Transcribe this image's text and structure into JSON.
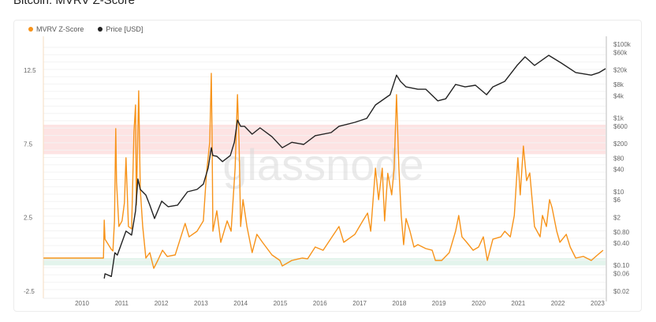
{
  "title": "Bitcoin: MVRV Z-Score",
  "watermark": "glassnode",
  "colors": {
    "mvrv": "#f7931a",
    "price": "#222222",
    "red_band": "#fde3e3",
    "green_band": "#e3f4ec"
  },
  "chart_data": {
    "type": "line",
    "title": "Bitcoin: MVRV Z-Score",
    "legend_position": "top-left",
    "grid": true,
    "xlim": [
      2009.0,
      2023.2
    ],
    "x_ticks": [
      "2010",
      "2011",
      "2012",
      "2013",
      "2014",
      "2015",
      "2016",
      "2017",
      "2018",
      "2019",
      "2020",
      "2021",
      "2022",
      "2023"
    ],
    "y_left": {
      "ylim": [
        -2.5,
        15.0
      ],
      "ticks": [
        "12.5",
        "7.5",
        "2.5",
        "-2.5"
      ],
      "tick_values": [
        12.5,
        7.5,
        2.5,
        -2.5
      ]
    },
    "y_right": {
      "scale": "log",
      "ylim": [
        0.02,
        100000
      ],
      "ticks": [
        "$100k",
        "$60k",
        "$20k",
        "$8k",
        "$4k",
        "$1k",
        "$600",
        "$200",
        "$80",
        "$40",
        "$10",
        "$6",
        "$2",
        "$0.80",
        "$0.40",
        "$0.10",
        "$0.06",
        "$0.02"
      ],
      "tick_values": [
        100000,
        60000,
        20000,
        8000,
        4000,
        1000,
        600,
        200,
        80,
        40,
        10,
        6,
        2,
        0.8,
        0.4,
        0.1,
        0.06,
        0.02
      ]
    },
    "bands": [
      {
        "axis": "left",
        "from": 6.8,
        "to": 8.8,
        "color": "#fde3e3"
      },
      {
        "axis": "left",
        "from": -0.75,
        "to": -0.25,
        "color": "#e3f4ec"
      }
    ],
    "series": [
      {
        "name": "MVRV Z-Score",
        "axis": "left",
        "color": "#f7931a",
        "points": [
          [
            2009.03,
            -0.25
          ],
          [
            2010.54,
            -0.25
          ],
          [
            2010.56,
            2.32
          ],
          [
            2010.58,
            1.03
          ],
          [
            2010.74,
            0.34
          ],
          [
            2010.78,
            0.23
          ],
          [
            2010.82,
            2.27
          ],
          [
            2010.85,
            8.53
          ],
          [
            2010.87,
            4.94
          ],
          [
            2010.93,
            1.89
          ],
          [
            2011.01,
            2.27
          ],
          [
            2011.07,
            3.49
          ],
          [
            2011.11,
            6.55
          ],
          [
            2011.17,
            1.89
          ],
          [
            2011.25,
            1.73
          ],
          [
            2011.31,
            8.32
          ],
          [
            2011.35,
            10.14
          ],
          [
            2011.37,
            3.34
          ],
          [
            2011.43,
            11.1
          ],
          [
            2011.47,
            4.43
          ],
          [
            2011.53,
            1.89
          ],
          [
            2011.61,
            -0.25
          ],
          [
            2011.71,
            0.12
          ],
          [
            2011.81,
            -0.95
          ],
          [
            2011.91,
            -0.41
          ],
          [
            2012.03,
            0.28
          ],
          [
            2012.15,
            -0.14
          ],
          [
            2012.35,
            -0.04
          ],
          [
            2012.6,
            2.1
          ],
          [
            2012.7,
            1.19
          ],
          [
            2012.9,
            1.57
          ],
          [
            2013.06,
            2.27
          ],
          [
            2013.14,
            5.5
          ],
          [
            2013.22,
            7.62
          ],
          [
            2013.26,
            12.28
          ],
          [
            2013.28,
            7.79
          ],
          [
            2013.3,
            1.57
          ],
          [
            2013.4,
            2.96
          ],
          [
            2013.5,
            0.82
          ],
          [
            2013.66,
            2.27
          ],
          [
            2013.76,
            1.57
          ],
          [
            2013.86,
            5.85
          ],
          [
            2013.92,
            10.84
          ],
          [
            2013.96,
            7.62
          ],
          [
            2014.0,
            1.89
          ],
          [
            2014.06,
            3.71
          ],
          [
            2014.16,
            1.89
          ],
          [
            2014.29,
            0.12
          ],
          [
            2014.41,
            1.36
          ],
          [
            2014.55,
            0.82
          ],
          [
            2014.79,
            -0.04
          ],
          [
            2014.99,
            -0.41
          ],
          [
            2015.05,
            -0.79
          ],
          [
            2015.29,
            -0.41
          ],
          [
            2015.55,
            -0.25
          ],
          [
            2015.69,
            -0.3
          ],
          [
            2015.88,
            0.5
          ],
          [
            2016.08,
            0.28
          ],
          [
            2016.48,
            1.89
          ],
          [
            2016.6,
            0.82
          ],
          [
            2016.88,
            1.36
          ],
          [
            2017.08,
            2.27
          ],
          [
            2017.2,
            2.8
          ],
          [
            2017.28,
            1.57
          ],
          [
            2017.4,
            5.85
          ],
          [
            2017.48,
            3.71
          ],
          [
            2017.57,
            5.85
          ],
          [
            2017.63,
            2.27
          ],
          [
            2017.71,
            5.5
          ],
          [
            2017.81,
            4.04
          ],
          [
            2017.87,
            5.85
          ],
          [
            2017.93,
            10.84
          ],
          [
            2017.99,
            5.85
          ],
          [
            2018.05,
            2.64
          ],
          [
            2018.11,
            0.66
          ],
          [
            2018.17,
            2.43
          ],
          [
            2018.27,
            1.57
          ],
          [
            2018.37,
            0.5
          ],
          [
            2018.47,
            0.66
          ],
          [
            2018.67,
            0.39
          ],
          [
            2018.83,
            0.28
          ],
          [
            2018.91,
            -0.41
          ],
          [
            2019.07,
            -0.41
          ],
          [
            2019.26,
            0.12
          ],
          [
            2019.42,
            1.57
          ],
          [
            2019.5,
            2.64
          ],
          [
            2019.58,
            1.19
          ],
          [
            2019.7,
            0.82
          ],
          [
            2019.86,
            0.28
          ],
          [
            2020.0,
            0.5
          ],
          [
            2020.12,
            1.19
          ],
          [
            2020.22,
            -0.41
          ],
          [
            2020.36,
            1.03
          ],
          [
            2020.56,
            1.19
          ],
          [
            2020.66,
            1.57
          ],
          [
            2020.8,
            1.19
          ],
          [
            2020.9,
            2.64
          ],
          [
            2020.99,
            6.55
          ],
          [
            2021.05,
            4.04
          ],
          [
            2021.13,
            7.35
          ],
          [
            2021.21,
            5.0
          ],
          [
            2021.29,
            5.53
          ],
          [
            2021.35,
            3.71
          ],
          [
            2021.41,
            1.89
          ],
          [
            2021.55,
            1.19
          ],
          [
            2021.61,
            2.64
          ],
          [
            2021.71,
            1.89
          ],
          [
            2021.79,
            3.71
          ],
          [
            2021.85,
            3.18
          ],
          [
            2021.97,
            1.57
          ],
          [
            2022.05,
            0.82
          ],
          [
            2022.21,
            1.36
          ],
          [
            2022.31,
            0.5
          ],
          [
            2022.45,
            -0.25
          ],
          [
            2022.64,
            -0.14
          ],
          [
            2022.84,
            -0.41
          ],
          [
            2023.0,
            -0.04
          ],
          [
            2023.14,
            0.28
          ]
        ]
      },
      {
        "name": "Price [USD]",
        "axis": "right",
        "color": "#222222",
        "points": [
          [
            2010.56,
            0.044
          ],
          [
            2010.58,
            0.059
          ],
          [
            2010.74,
            0.05
          ],
          [
            2010.83,
            0.22
          ],
          [
            2010.89,
            0.19
          ],
          [
            2011.01,
            0.43
          ],
          [
            2011.11,
            0.85
          ],
          [
            2011.25,
            0.66
          ],
          [
            2011.35,
            3.0
          ],
          [
            2011.41,
            22
          ],
          [
            2011.47,
            11.5
          ],
          [
            2011.61,
            8.1
          ],
          [
            2011.71,
            4.3
          ],
          [
            2011.83,
            1.86
          ],
          [
            2012.01,
            5.5
          ],
          [
            2012.17,
            3.9
          ],
          [
            2012.41,
            4.3
          ],
          [
            2012.66,
            9.9
          ],
          [
            2012.9,
            11.5
          ],
          [
            2013.06,
            16
          ],
          [
            2013.18,
            44
          ],
          [
            2013.26,
            155
          ],
          [
            2013.3,
            95
          ],
          [
            2013.4,
            91
          ],
          [
            2013.54,
            65
          ],
          [
            2013.74,
            95
          ],
          [
            2013.84,
            218
          ],
          [
            2013.92,
            870
          ],
          [
            2014.0,
            590
          ],
          [
            2014.1,
            590
          ],
          [
            2014.29,
            363
          ],
          [
            2014.49,
            537
          ],
          [
            2014.79,
            310
          ],
          [
            2015.05,
            155
          ],
          [
            2015.29,
            218
          ],
          [
            2015.59,
            191
          ],
          [
            2015.88,
            330
          ],
          [
            2016.28,
            400
          ],
          [
            2016.48,
            590
          ],
          [
            2016.88,
            760
          ],
          [
            2017.18,
            970
          ],
          [
            2017.4,
            2240
          ],
          [
            2017.57,
            3020
          ],
          [
            2017.77,
            4270
          ],
          [
            2017.93,
            14500
          ],
          [
            2018.03,
            9800
          ],
          [
            2018.17,
            6950
          ],
          [
            2018.47,
            6000
          ],
          [
            2018.67,
            6000
          ],
          [
            2018.87,
            3700
          ],
          [
            2018.97,
            2900
          ],
          [
            2019.17,
            3300
          ],
          [
            2019.42,
            8100
          ],
          [
            2019.66,
            6950
          ],
          [
            2019.92,
            7700
          ],
          [
            2020.2,
            4270
          ],
          [
            2020.36,
            6950
          ],
          [
            2020.66,
            9800
          ],
          [
            2020.97,
            26500
          ],
          [
            2021.17,
            45500
          ],
          [
            2021.41,
            26500
          ],
          [
            2021.77,
            50000
          ],
          [
            2022.09,
            30700
          ],
          [
            2022.45,
            17000
          ],
          [
            2022.84,
            14500
          ],
          [
            2023.04,
            17000
          ],
          [
            2023.2,
            21700
          ]
        ]
      }
    ]
  },
  "legend": [
    {
      "label": "MVRV Z-Score",
      "color": "#f7931a"
    },
    {
      "label": "Price [USD]",
      "color": "#222222"
    }
  ]
}
